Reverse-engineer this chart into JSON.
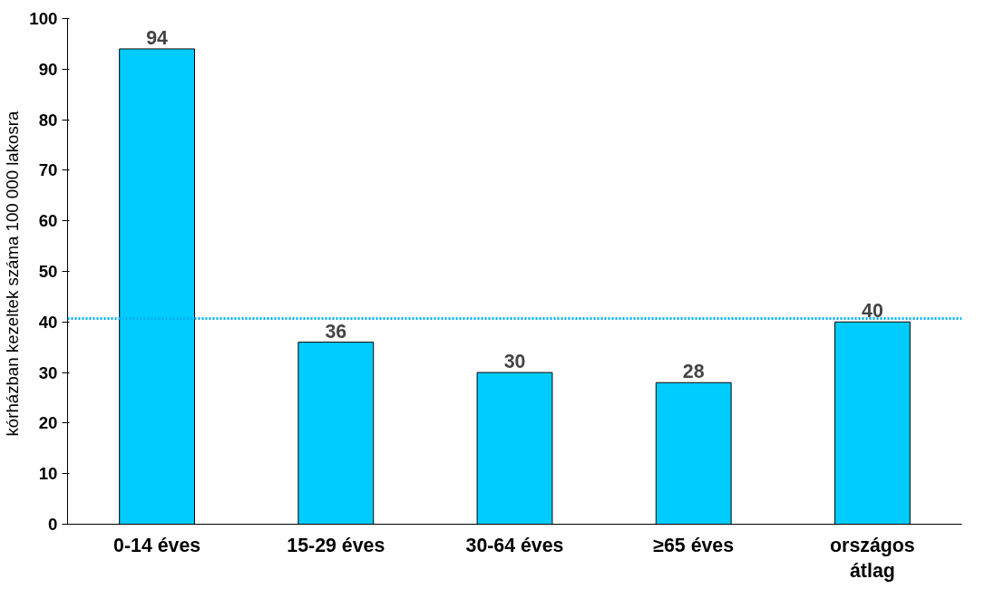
{
  "chart_data": {
    "type": "bar",
    "ylabel": "kórházban kezeltek száma  100 000 lakosra",
    "categories": [
      "0-14 éves",
      "15-29 éves",
      "30-64 éves",
      "≥65 éves",
      "országos átlag"
    ],
    "values": [
      94,
      36,
      30,
      28,
      40
    ],
    "color": "#00ccff",
    "ylim": [
      0,
      100
    ],
    "yticks": [
      0,
      10,
      20,
      30,
      40,
      50,
      60,
      70,
      80,
      90,
      100
    ],
    "data_labels": true,
    "grid": false,
    "ref_lines": [
      {
        "axis": "y",
        "value": 40.7,
        "color": "#00b0f0",
        "line_style": "dotted"
      }
    ]
  }
}
